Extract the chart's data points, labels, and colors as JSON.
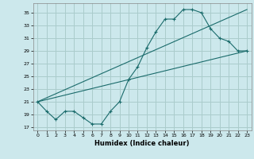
{
  "xlabel": "Humidex (Indice chaleur)",
  "bg_color": "#cce8ec",
  "grid_color": "#aacccc",
  "line_color": "#1a6b6b",
  "xlim": [
    -0.5,
    23.5
  ],
  "ylim": [
    16.5,
    36.5
  ],
  "xticks": [
    0,
    1,
    2,
    3,
    4,
    5,
    6,
    7,
    8,
    9,
    10,
    11,
    12,
    13,
    14,
    15,
    16,
    17,
    18,
    19,
    20,
    21,
    22,
    23
  ],
  "yticks": [
    17,
    19,
    21,
    23,
    25,
    27,
    29,
    31,
    33,
    35
  ],
  "line1_x": [
    0,
    1,
    2,
    3,
    4,
    5,
    6,
    7,
    8,
    9,
    10,
    11,
    12,
    13,
    14,
    15,
    16,
    17,
    18,
    19,
    20,
    21,
    22,
    23
  ],
  "line1_y": [
    21,
    19.5,
    18.2,
    19.5,
    19.5,
    18.5,
    17.5,
    17.5,
    19.5,
    21.0,
    24.5,
    26.5,
    29.5,
    32.0,
    34.0,
    34.0,
    35.5,
    35.5,
    35.0,
    32.5,
    31.0,
    30.5,
    29.0,
    29.0
  ],
  "line2_x": [
    0,
    23
  ],
  "line2_y": [
    21.0,
    29.0
  ],
  "line3_x": [
    0,
    23
  ],
  "line3_y": [
    21.0,
    35.5
  ]
}
